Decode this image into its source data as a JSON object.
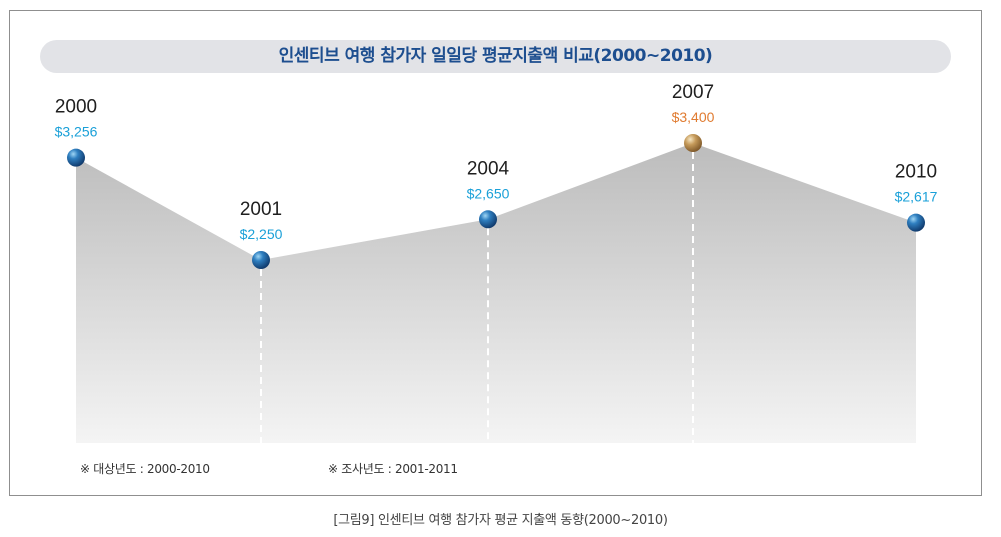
{
  "title": "인센티브 여행 참가자 일일당 평균지출액 비교(2000~2010)",
  "notes": {
    "target_years": "※  대상년도 : 2000-2010",
    "survey_years": "※  조사년도 : 2001-2011"
  },
  "caption": "[그림9] 인센티브 여행 참가자 평균 지출액 동향(2000~2010)",
  "colors": {
    "title_text": "#1d4e8f",
    "value_blue": "#1aa0d8",
    "value_highlight": "#e07b30",
    "area_fill": "#cfcfcf"
  },
  "chart_data": {
    "type": "area",
    "title": "인센티브 여행 참가자 일일당 평균지출액 비교(2000~2010)",
    "xlabel": "",
    "ylabel": "",
    "x": [
      "2000",
      "2001",
      "2004",
      "2007",
      "2010"
    ],
    "values": [
      3256,
      2250,
      2650,
      3400,
      2617
    ],
    "value_labels": [
      "$3,256",
      "$2,250",
      "$2,650",
      "$3,400",
      "$2,617"
    ],
    "highlight": "2007",
    "grid": false,
    "legend": "none"
  }
}
